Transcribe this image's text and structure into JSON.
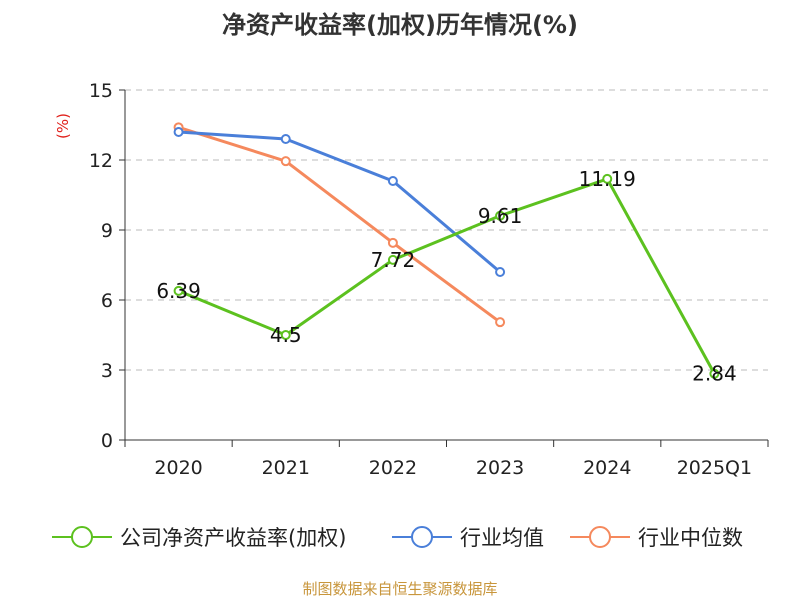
{
  "chart_data": {
    "type": "line",
    "title": "净资产收益率(加权)历年情况(%)",
    "ylabel": "(%)",
    "xlabel": "",
    "categories": [
      "2020",
      "2021",
      "2022",
      "2023",
      "2024",
      "2025Q1"
    ],
    "yticks": [
      "0",
      "3",
      "6",
      "9",
      "12",
      "15"
    ],
    "ylim": [
      0,
      15
    ],
    "grid": true,
    "legend_position": "bottom",
    "series": [
      {
        "name": "公司净资产收益率(加权)",
        "color": "#5CC11F",
        "values": [
          6.39,
          4.5,
          7.72,
          9.61,
          11.19,
          2.84
        ],
        "data_labels": [
          "6.39",
          "4.5",
          "7.72",
          "9.61",
          "11.19",
          "2.84"
        ]
      },
      {
        "name": "行业均值",
        "color": "#4A7FD9",
        "values": [
          13.2,
          12.9,
          11.1,
          7.2,
          null,
          null
        ]
      },
      {
        "name": "行业中位数",
        "color": "#F5895D",
        "values": [
          13.4,
          11.95,
          8.45,
          5.05,
          null,
          null
        ]
      }
    ]
  },
  "colors": {
    "ylabel": "#E0201B",
    "source": "#C8963C",
    "axis": "#333333",
    "grid": "#BBBBBB",
    "text": "#222222"
  },
  "source_text": "制图数据来自恒生聚源数据库"
}
